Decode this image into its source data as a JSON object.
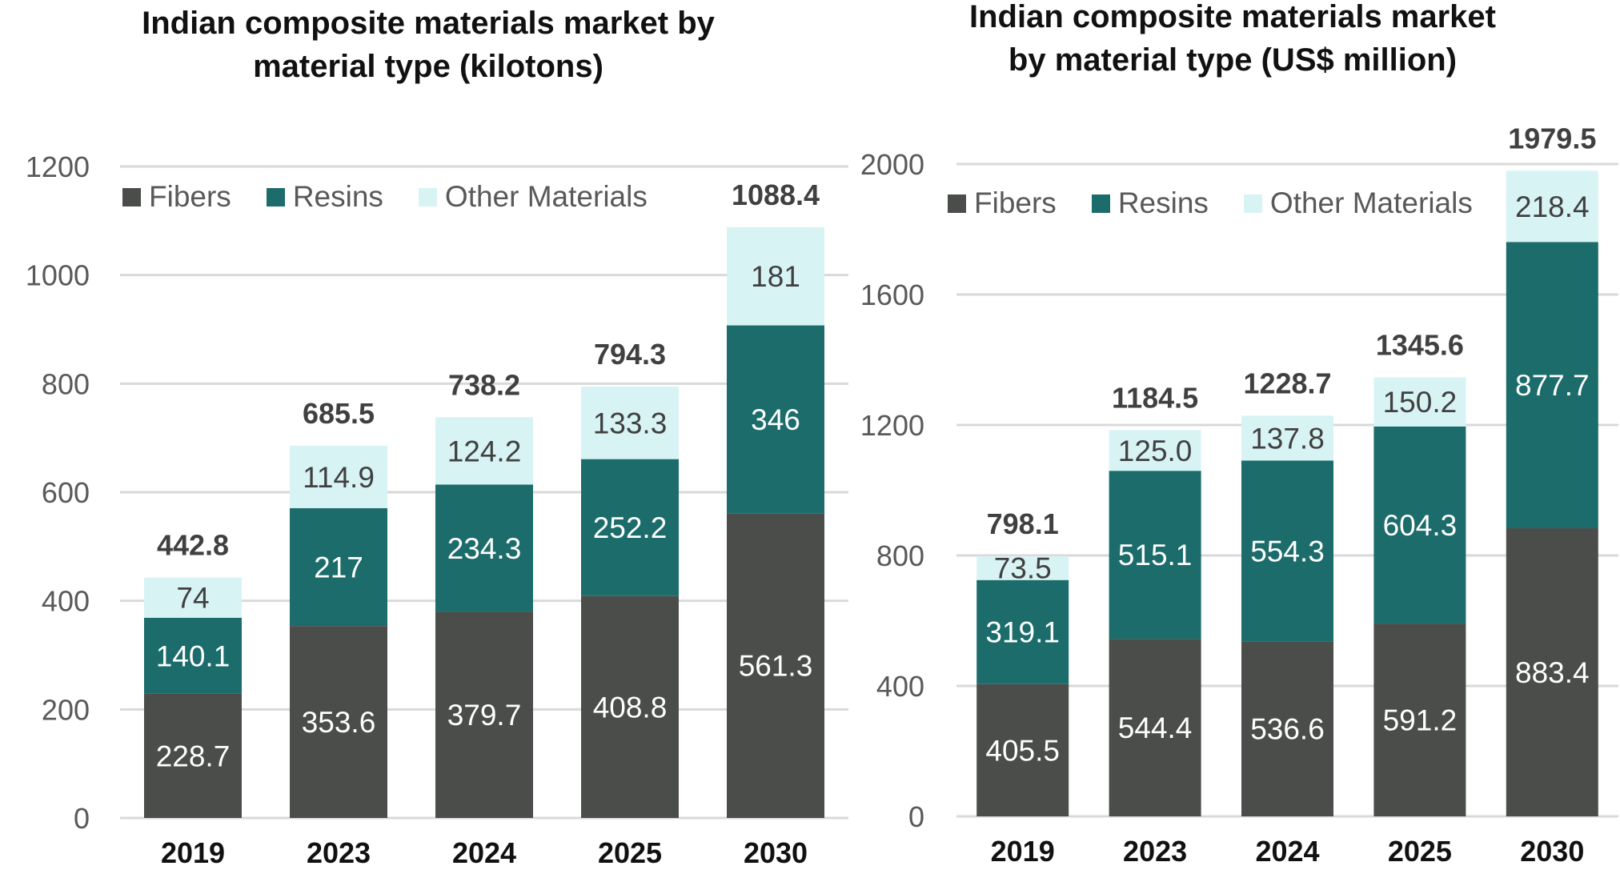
{
  "colors": {
    "fibers": "#4b4d4b",
    "resins": "#1b6c6b",
    "other": "#d8f3f4",
    "grid": "#d9d9d9",
    "axis_text": "#595959",
    "total_text": "#404040"
  },
  "chart_data": [
    {
      "type": "bar",
      "stacked": true,
      "title_lines": [
        "Indian composite materials market by",
        "material type (kilotons)"
      ],
      "categories": [
        "2019",
        "2023",
        "2024",
        "2025",
        "2030"
      ],
      "series": [
        {
          "name": "Fibers",
          "values": [
            228.7,
            353.6,
            379.7,
            408.8,
            561.3
          ],
          "labels": [
            "228.7",
            "353.6",
            "379.7",
            "408.8",
            "561.3"
          ]
        },
        {
          "name": "Resins",
          "values": [
            140.1,
            217,
            234.3,
            252.2,
            346
          ],
          "labels": [
            "140.1",
            "217",
            "234.3",
            "252.2",
            "346"
          ]
        },
        {
          "name": "Other Materials",
          "values": [
            74,
            114.9,
            124.2,
            133.3,
            181
          ],
          "labels": [
            "74",
            "114.9",
            "124.2",
            "133.3",
            "181"
          ]
        }
      ],
      "totals": [
        "442.8",
        "685.5",
        "738.2",
        "794.3",
        "1088.4"
      ],
      "ylim": [
        0,
        1200
      ],
      "yticks": [
        0,
        200,
        400,
        600,
        800,
        1000,
        1200
      ],
      "legend": "top-left"
    },
    {
      "type": "bar",
      "stacked": true,
      "title_lines": [
        "Indian composite materials market",
        "by material type (US$ million)"
      ],
      "categories": [
        "2019",
        "2023",
        "2024",
        "2025",
        "2030"
      ],
      "series": [
        {
          "name": "Fibers",
          "values": [
            405.5,
            544.4,
            536.6,
            591.2,
            883.4
          ],
          "labels": [
            "405.5",
            "544.4",
            "536.6",
            "591.2",
            "883.4"
          ]
        },
        {
          "name": "Resins",
          "values": [
            319.1,
            515.1,
            554.3,
            604.3,
            877.7
          ],
          "labels": [
            "319.1",
            "515.1",
            "554.3",
            "604.3",
            "877.7"
          ]
        },
        {
          "name": "Other Materials",
          "values": [
            73.5,
            125.0,
            137.8,
            150.2,
            218.4
          ],
          "labels": [
            "73.5",
            "125.0",
            "137.8",
            "150.2",
            "218.4"
          ]
        }
      ],
      "totals": [
        "798.1",
        "1184.5",
        "1228.7",
        "1345.6",
        "1979.5"
      ],
      "ylim": [
        0,
        2000
      ],
      "yticks": [
        0,
        400,
        800,
        1200,
        1600,
        2000
      ],
      "legend": "top-left"
    }
  ]
}
